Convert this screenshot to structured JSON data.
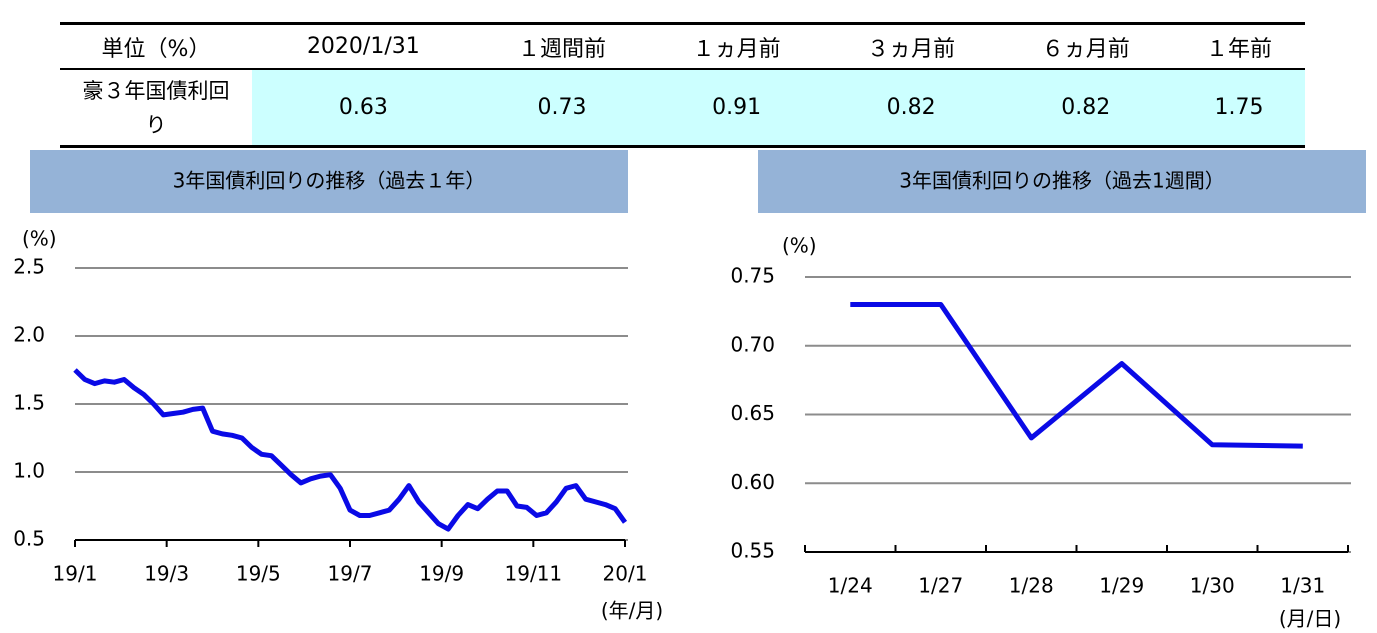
{
  "table": {
    "header": [
      "単位（%）",
      "2020/1/31",
      "１週間前",
      "１ヵ月前",
      "３ヵ月前",
      "６ヵ月前",
      "１年前"
    ],
    "row": {
      "label": "豪３年国債利回り",
      "values": [
        0.63,
        0.73,
        0.91,
        0.82,
        0.82,
        1.75
      ]
    }
  },
  "chart_data": [
    {
      "type": "line",
      "title": "3年国債利回りの推移（過去１年）",
      "y_unit": "(%)",
      "x_unit": "(年/月)",
      "xticks": [
        "19/1",
        "19/3",
        "19/5",
        "19/7",
        "19/9",
        "19/11",
        "20/1"
      ],
      "values": [
        1.75,
        1.68,
        1.65,
        1.67,
        1.66,
        1.68,
        1.62,
        1.57,
        1.5,
        1.42,
        1.43,
        1.44,
        1.46,
        1.47,
        1.3,
        1.28,
        1.27,
        1.25,
        1.18,
        1.13,
        1.12,
        1.05,
        0.98,
        0.92,
        0.95,
        0.97,
        0.98,
        0.88,
        0.72,
        0.68,
        0.68,
        0.7,
        0.72,
        0.8,
        0.9,
        0.78,
        0.7,
        0.62,
        0.58,
        0.68,
        0.76,
        0.73,
        0.8,
        0.86,
        0.86,
        0.75,
        0.74,
        0.68,
        0.7,
        0.78,
        0.88,
        0.9,
        0.8,
        0.78,
        0.76,
        0.73,
        0.63
      ],
      "color": "#0a0ae6",
      "grid": true,
      "ylim": [
        0.5,
        2.5
      ],
      "yticks": [
        0.5,
        {
          "value": 1,
          "label": "1.0"
        },
        1.5,
        {
          "value": 2,
          "label": "2.0"
        },
        2.5
      ]
    },
    {
      "type": "line",
      "title": "3年国債利回りの推移（過去1週間）",
      "y_unit": "(%)",
      "x_unit": "(月/日)",
      "categories": [
        "1/24",
        "1/27",
        "1/28",
        "1/29",
        "1/30",
        "1/31"
      ],
      "values": [
        0.73,
        0.73,
        0.633,
        0.687,
        0.628,
        0.627
      ],
      "color": "#0a0ae6",
      "grid": true,
      "ylim": [
        0.55,
        0.75
      ],
      "yticks": [
        0.55,
        {
          "value": 0.6,
          "label": "0.60"
        },
        0.65,
        {
          "value": 0.7,
          "label": "0.70"
        },
        0.75
      ]
    }
  ]
}
